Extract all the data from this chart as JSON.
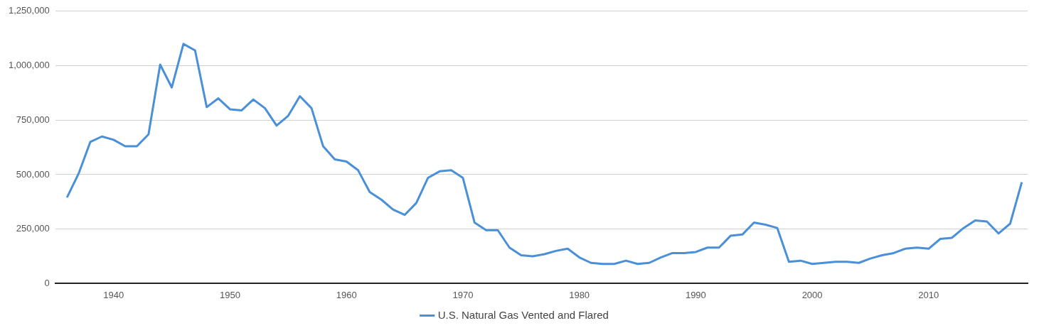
{
  "chart_data": {
    "type": "line",
    "x": [
      1936,
      1937,
      1938,
      1939,
      1940,
      1941,
      1942,
      1943,
      1944,
      1945,
      1946,
      1947,
      1948,
      1949,
      1950,
      1951,
      1952,
      1953,
      1954,
      1955,
      1956,
      1957,
      1958,
      1959,
      1960,
      1961,
      1962,
      1963,
      1964,
      1965,
      1966,
      1967,
      1968,
      1969,
      1970,
      1971,
      1972,
      1973,
      1974,
      1975,
      1976,
      1977,
      1978,
      1979,
      1980,
      1981,
      1982,
      1983,
      1984,
      1985,
      1986,
      1987,
      1988,
      1989,
      1990,
      1991,
      1992,
      1993,
      1994,
      1995,
      1996,
      1997,
      1998,
      1999,
      2000,
      2001,
      2002,
      2003,
      2004,
      2005,
      2006,
      2007,
      2008,
      2009,
      2010,
      2011,
      2012,
      2013,
      2014,
      2015,
      2016,
      2017,
      2018
    ],
    "series": [
      {
        "name": "U.S. Natural Gas Vented and Flared",
        "color": "#4a90d9",
        "values": [
          395000,
          505000,
          650000,
          675000,
          660000,
          630000,
          630000,
          685000,
          1005000,
          900000,
          1100000,
          1070000,
          810000,
          850000,
          800000,
          795000,
          845000,
          805000,
          725000,
          770000,
          860000,
          805000,
          630000,
          570000,
          560000,
          520000,
          420000,
          385000,
          340000,
          315000,
          370000,
          485000,
          515000,
          520000,
          485000,
          280000,
          245000,
          245000,
          165000,
          130000,
          125000,
          135000,
          150000,
          160000,
          120000,
          95000,
          90000,
          90000,
          105000,
          90000,
          95000,
          120000,
          140000,
          140000,
          145000,
          165000,
          165000,
          220000,
          225000,
          280000,
          270000,
          255000,
          100000,
          105000,
          90000,
          95000,
          100000,
          100000,
          95000,
          115000,
          130000,
          140000,
          160000,
          165000,
          160000,
          205000,
          210000,
          255000,
          290000,
          285000,
          230000,
          275000,
          465000
        ]
      }
    ],
    "xlim": [
      1935,
      2018.5
    ],
    "xticks": [
      1940,
      1950,
      1960,
      1970,
      1980,
      1990,
      2000,
      2010
    ],
    "ylim": [
      0,
      1250000
    ],
    "yticks": [
      0,
      {
        "value": 250000,
        "label": "250,000"
      },
      {
        "value": 500000,
        "label": "500,000"
      },
      {
        "value": 750000,
        "label": "750,000"
      },
      {
        "value": 1000000,
        "label": "1,000,000"
      },
      {
        "value": 1250000,
        "label": "1,250,000"
      }
    ],
    "grid": "y",
    "legend": "bottom",
    "marker": "none",
    "line_style": "solid"
  }
}
